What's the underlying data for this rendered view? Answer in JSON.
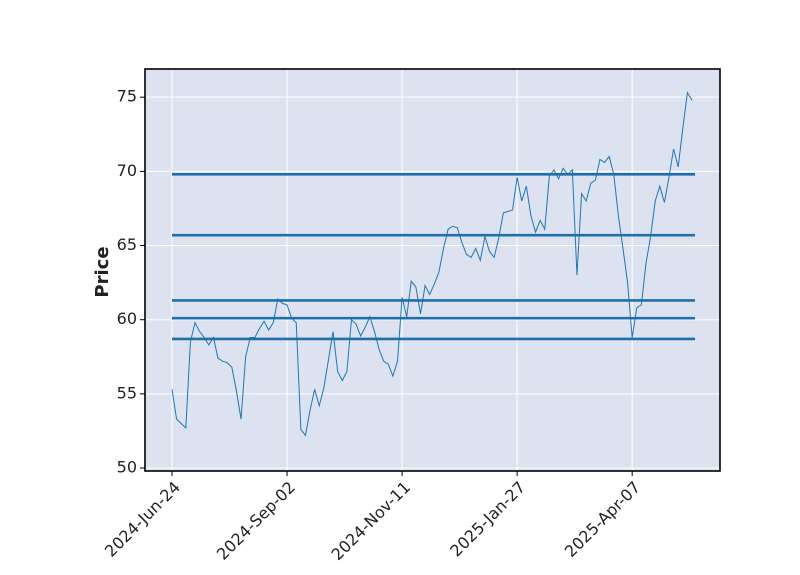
{
  "chart_data": {
    "type": "line",
    "ylabel": "Price",
    "ylim": [
      49.8,
      76.9
    ],
    "yticks": [
      50,
      55,
      60,
      65,
      70,
      75
    ],
    "grid": true,
    "background": "#dce2ef",
    "color": "#1f77b4",
    "hline_color": "#1f6fad",
    "hlines": [
      69.8,
      65.7,
      61.3,
      60.1,
      58.7
    ],
    "categories": [
      "2024-Jun-24",
      null,
      null,
      null,
      null,
      null,
      null,
      null,
      null,
      null,
      null,
      null,
      null,
      null,
      null,
      null,
      null,
      null,
      null,
      null,
      null,
      null,
      null,
      null,
      null,
      "2024-Sep-02",
      null,
      null,
      null,
      null,
      null,
      null,
      null,
      null,
      null,
      null,
      null,
      null,
      null,
      null,
      null,
      null,
      null,
      null,
      null,
      null,
      null,
      null,
      null,
      null,
      "2024-Nov-11",
      null,
      null,
      null,
      null,
      null,
      null,
      null,
      null,
      null,
      null,
      null,
      null,
      null,
      null,
      null,
      null,
      null,
      null,
      null,
      null,
      null,
      null,
      null,
      null,
      "2025-Jan-27",
      null,
      null,
      null,
      null,
      null,
      null,
      null,
      null,
      null,
      null,
      null,
      null,
      null,
      null,
      null,
      null,
      null,
      null,
      null,
      null,
      null,
      null,
      null,
      null,
      "2025-Apr-07",
      null,
      null,
      null,
      null,
      null,
      null,
      null,
      null,
      null,
      null,
      null,
      null,
      null
    ],
    "values": [
      55.3,
      53.3,
      53.0,
      52.7,
      58.5,
      59.8,
      59.2,
      58.8,
      58.3,
      58.8,
      57.4,
      57.2,
      57.1,
      56.8,
      55.2,
      53.3,
      57.5,
      58.8,
      58.8,
      59.4,
      59.9,
      59.3,
      59.8,
      61.4,
      61.1,
      61.0,
      60.1,
      59.8,
      52.6,
      52.2,
      53.9,
      55.3,
      54.2,
      55.4,
      57.3,
      59.2,
      56.5,
      55.9,
      56.5,
      60.0,
      59.7,
      58.9,
      59.5,
      60.2,
      59.2,
      58.0,
      57.2,
      57.0,
      56.2,
      57.2,
      61.5,
      60.2,
      62.6,
      62.2,
      60.4,
      62.3,
      61.7,
      62.4,
      63.2,
      64.8,
      66.1,
      66.3,
      66.2,
      65.2,
      64.4,
      64.2,
      64.8,
      64.0,
      65.6,
      64.6,
      64.2,
      65.5,
      67.2,
      67.3,
      67.4,
      69.6,
      68.0,
      69.0,
      67.0,
      65.9,
      66.7,
      66.1,
      69.7,
      70.1,
      69.5,
      70.2,
      69.8,
      70.1,
      63.0,
      68.5,
      68.0,
      69.2,
      69.4,
      70.8,
      70.6,
      71.0,
      69.8,
      67.0,
      64.8,
      62.5,
      58.8,
      60.8,
      61.0,
      63.8,
      65.6,
      68.0,
      69.0,
      67.9,
      69.6,
      71.5,
      70.3,
      72.9,
      75.3,
      74.8
    ]
  }
}
